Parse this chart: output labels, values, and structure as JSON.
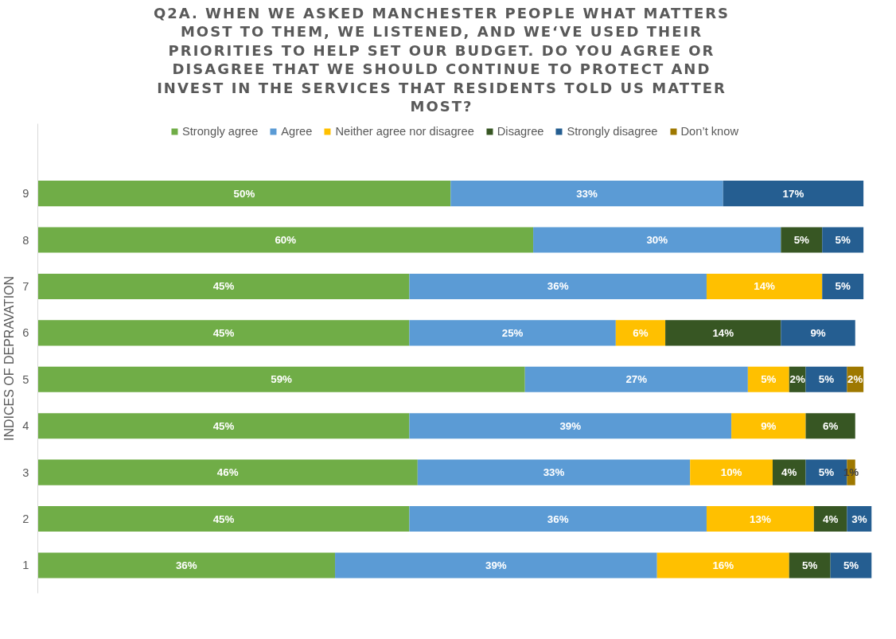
{
  "chart_data": {
    "type": "bar",
    "orientation": "horizontal",
    "stacked": true,
    "legend": "top",
    "grid": false,
    "title": "Q2A. WHEN WE ASKED MANCHESTER PEOPLE WHAT MATTERS MOST TO THEM, WE LISTENED, AND WE‘VE USED THEIR PRIORITIES TO HELP SET OUR BUDGET. DO YOU AGREE OR DISAGREE THAT WE SHOULD CONTINUE TO PROTECT AND INVEST IN THE SERVICES THAT RESIDENTS TOLD US MATTER MOST?",
    "ylabel": "INDICES OF DEPRAVATION",
    "categories": [
      "9",
      "8",
      "7",
      "6",
      "5",
      "4",
      "3",
      "2",
      "1"
    ],
    "series": [
      {
        "name": "Strongly agree",
        "color": "#70ad47",
        "values": [
          50,
          60,
          45,
          45,
          59,
          45,
          46,
          45,
          36
        ],
        "value_labels": [
          "50%",
          "60%",
          "45%",
          "45%",
          "59%",
          "45%",
          "46%",
          "45%",
          "36%"
        ]
      },
      {
        "name": "Agree",
        "color": "#5b9bd5",
        "values": [
          33,
          30,
          36,
          25,
          27,
          39,
          33,
          36,
          39
        ],
        "value_labels": [
          "33%",
          "30%",
          "36%",
          "25%",
          "27%",
          "39%",
          "33%",
          "36%",
          "39%"
        ]
      },
      {
        "name": "Neither agree nor disagree",
        "color": "#ffc000",
        "values": [
          null,
          null,
          14,
          6,
          5,
          9,
          10,
          13,
          16
        ],
        "value_labels": [
          null,
          null,
          "14%",
          "6%",
          "5%",
          "9%",
          "10%",
          "13%",
          "16%"
        ]
      },
      {
        "name": "Disagree",
        "color": "#375623",
        "values": [
          null,
          5,
          null,
          14,
          2,
          6,
          4,
          4,
          5
        ],
        "value_labels": [
          null,
          "5%",
          null,
          "14%",
          "2%",
          "6%",
          "4%",
          "4%",
          "5%"
        ]
      },
      {
        "name": "Strongly disagree",
        "color": "#255e91",
        "values": [
          17,
          5,
          5,
          9,
          5,
          null,
          5,
          3,
          5
        ],
        "value_labels": [
          "17%",
          "5%",
          "5%",
          "9%",
          "5%",
          null,
          "5%",
          "3%",
          "5%"
        ]
      },
      {
        "name": "Don’t know",
        "color": "#9e7800",
        "values": [
          null,
          null,
          null,
          null,
          2,
          null,
          1,
          null,
          null
        ],
        "value_labels": [
          null,
          null,
          null,
          null,
          "2%",
          null,
          "1%",
          null,
          null
        ]
      }
    ]
  }
}
